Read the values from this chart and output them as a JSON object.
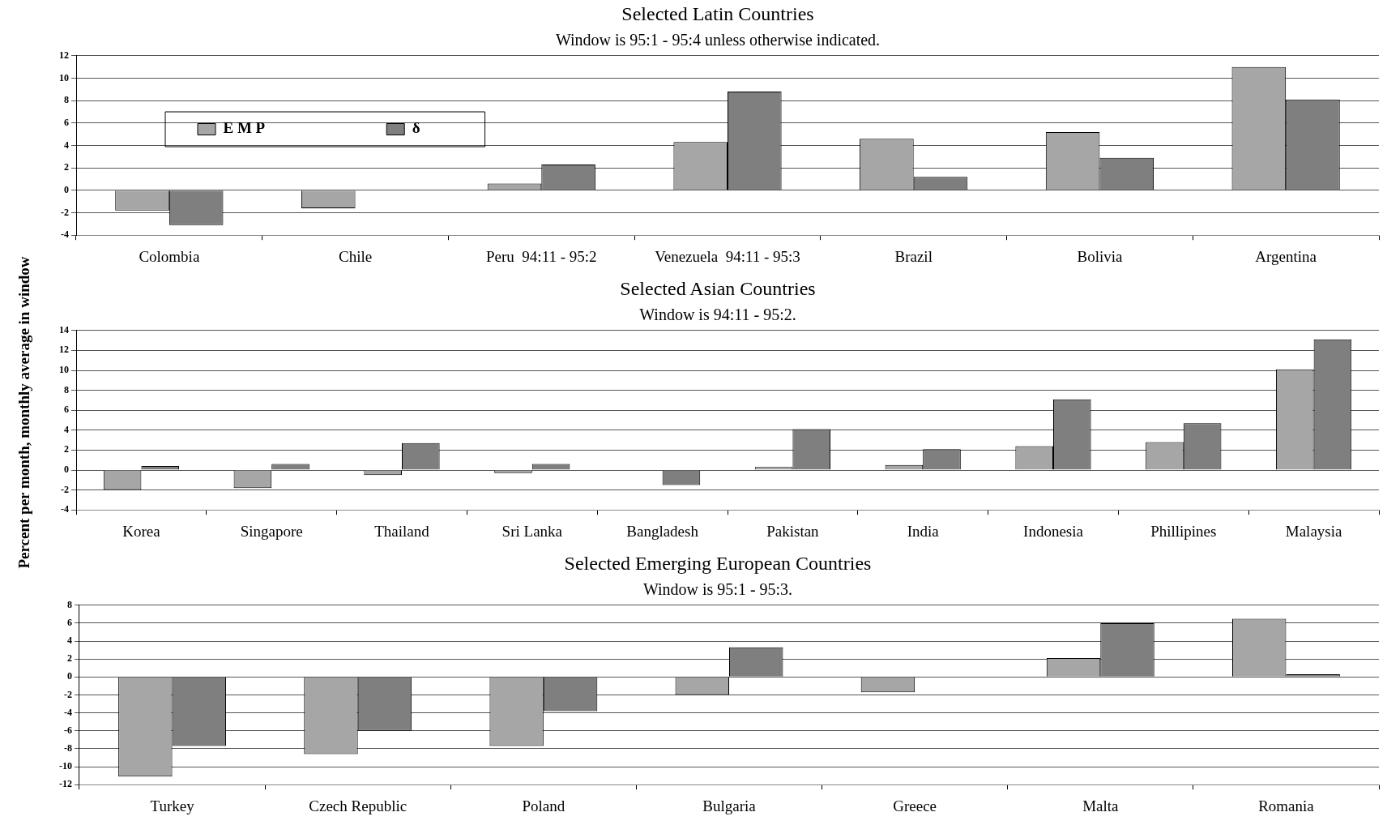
{
  "chart_data": [
    {
      "type": "bar",
      "title": "Selected Latin Countries",
      "subtitle": "Window is 95:1 - 95:4 unless otherwise indicated.",
      "categories": [
        "Colombia",
        "Chile",
        "Peru  94:11 - 95:2",
        "Venezuela  94:11 - 95:3",
        "Brazil",
        "Bolivia",
        "Argentina"
      ],
      "series": [
        {
          "name": "E M P",
          "color": "#a6a6a6",
          "values": [
            -1.8,
            -1.6,
            0.6,
            4.3,
            4.6,
            5.2,
            11
          ]
        },
        {
          "name": "δ",
          "color": "#7f7f7f",
          "values": [
            -3.1,
            0,
            2.3,
            8.8,
            1.2,
            2.9,
            8.1
          ]
        }
      ],
      "ylim": [
        -4,
        12
      ],
      "yticks": [
        -4,
        -2,
        0,
        2,
        4,
        6,
        8,
        10,
        12
      ],
      "grid": "y",
      "legend": "top left"
    },
    {
      "type": "bar",
      "title": "Selected Asian Countries",
      "subtitle": "Window is 94:11 - 95:2.",
      "ylabel": "Percent per month, monthly average in window",
      "categories": [
        "Korea",
        "Singapore",
        "Thailand",
        "Sri Lanka",
        "Bangladesh",
        "Pakistan",
        "India",
        "Indonesia",
        "Phillipines",
        "Malaysia"
      ],
      "series": [
        {
          "color": "#a6a6a6",
          "values": [
            -2.0,
            -1.8,
            -0.5,
            -0.3,
            0,
            0.3,
            0.5,
            2.4,
            2.8,
            10.1
          ]
        },
        {
          "color": "#7f7f7f",
          "values": [
            0.4,
            0.6,
            2.7,
            0.6,
            -1.5,
            4.1,
            2.1,
            7.1,
            4.7,
            13.1
          ]
        }
      ],
      "ylim": [
        -4,
        14
      ],
      "yticks": [
        -4,
        -2,
        0,
        2,
        4,
        6,
        8,
        10,
        12,
        14
      ],
      "grid": "y"
    },
    {
      "type": "bar",
      "title": "Selected Emerging European Countries",
      "subtitle": "Window is 95:1 - 95:3.",
      "categories": [
        "Turkey",
        "Czech Republic",
        "Poland",
        "Bulgaria",
        "Greece",
        "Malta",
        "Romania"
      ],
      "series": [
        {
          "color": "#a6a6a6",
          "values": [
            -11.1,
            -8.6,
            -7.7,
            -2.0,
            -1.7,
            2.1,
            6.5
          ]
        },
        {
          "color": "#7f7f7f",
          "values": [
            -7.7,
            -6.0,
            -3.8,
            3.3,
            0.0,
            6.0,
            0.3
          ]
        }
      ],
      "ylim": [
        -12,
        8
      ],
      "yticks": [
        -12,
        -10,
        -8,
        -6,
        -4,
        -2,
        0,
        2,
        4,
        6,
        8
      ],
      "grid": "y"
    }
  ]
}
